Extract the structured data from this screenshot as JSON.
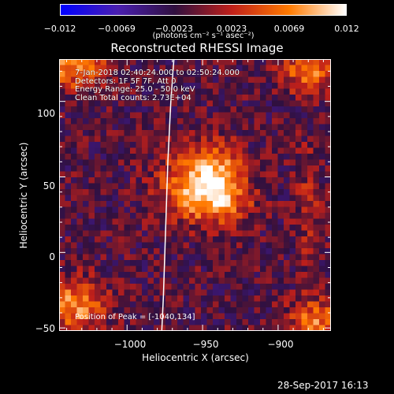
{
  "colorbar": {
    "ticks": [
      "−0.012",
      "−0.0069",
      "−0.0023",
      "0.0023",
      "0.0069",
      "0.012"
    ],
    "unit_label": "(photons cm⁻² s⁻¹ asec⁻²)",
    "range": [
      -0.012,
      0.012
    ],
    "colormap": [
      "#0000ff",
      "#4a1fb0",
      "#30103f",
      "#c0201a",
      "#ff7a00",
      "#ffffff"
    ]
  },
  "chart_data": {
    "type": "heatmap",
    "title": "Reconstructed RHESSI Image",
    "xlabel": "Heliocentric X (arcsec)",
    "ylabel": "Heliocentric Y (arcsec)",
    "xlim": [
      -1045,
      -865
    ],
    "ylim": [
      -52,
      128
    ],
    "x_ticks": [
      -1000,
      -950,
      -900
    ],
    "x_tick_labels": [
      "−1000",
      "−950",
      "−900"
    ],
    "y_ticks": [
      -50,
      0,
      50,
      100
    ],
    "y_tick_labels": [
      "−50",
      "0",
      "50",
      "100"
    ],
    "limb_curve": [
      [
        -969,
        128
      ],
      [
        -971,
        100
      ],
      [
        -972,
        80
      ],
      [
        -973,
        60
      ],
      [
        -974,
        30
      ],
      [
        -975,
        0
      ],
      [
        -976,
        -30
      ],
      [
        -977,
        -52
      ]
    ],
    "peak": [
      -1040,
      134
    ],
    "sources": [
      {
        "x": -950,
        "y": 44,
        "sx": 18,
        "sy": 15,
        "amp": 0.012
      },
      {
        "x": -940,
        "y": 55,
        "sx": 10,
        "sy": 15,
        "amp": 0.004
      },
      {
        "x": -935,
        "y": 30,
        "sx": 15,
        "sy": 8,
        "amp": 0.003
      },
      {
        "x": -1035,
        "y": 125,
        "sx": 14,
        "sy": 12,
        "amp": 0.009
      },
      {
        "x": -880,
        "y": 120,
        "sx": 12,
        "sy": 10,
        "amp": 0.008
      },
      {
        "x": -1035,
        "y": -35,
        "sx": 14,
        "sy": 12,
        "amp": 0.009
      },
      {
        "x": -875,
        "y": -45,
        "sx": 12,
        "sy": 10,
        "amp": 0.008
      },
      {
        "x": -880,
        "y": 30,
        "sx": 6,
        "sy": 30,
        "amp": 0.003
      }
    ]
  },
  "annotation": {
    "lines": [
      "7-Jan-2018 02:40:24.000 to 02:50:24.000",
      "Detectors: 1F 5F 7F, Att 0",
      "Energy Range: 25.0 - 50.0 keV",
      "Clean     Total counts: 2.73E+04"
    ],
    "peak_text": "Position of Peak = [-1040,134]"
  },
  "footer": {
    "timestamp": "28-Sep-2017 16:13"
  }
}
